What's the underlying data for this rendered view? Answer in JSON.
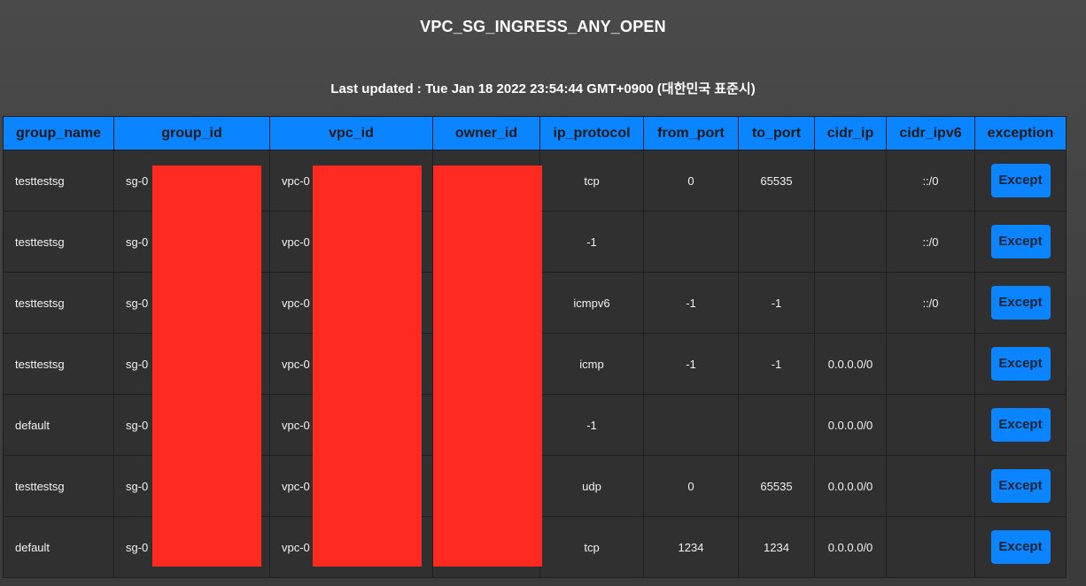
{
  "page": {
    "title": "VPC_SG_INGRESS_ANY_OPEN",
    "last_updated": "Last updated : Tue Jan 18 2022 23:54:44 GMT+0900 (대한민국 표준시)"
  },
  "colors": {
    "header_bg": "#0a84ff",
    "button_bg": "#0a84ff",
    "redaction": "#ff2a1f",
    "cell_bg": "#303030"
  },
  "table": {
    "headers": [
      "group_name",
      "group_id",
      "vpc_id",
      "owner_id",
      "ip_protocol",
      "from_port",
      "to_port",
      "cidr_ip",
      "cidr_ipv6",
      "exception"
    ],
    "rows": [
      {
        "group_name": "testtestsg",
        "group_id": "sg-0",
        "vpc_id": "vpc-0",
        "owner_id": "",
        "ip_protocol": "tcp",
        "from_port": "0",
        "to_port": "65535",
        "cidr_ip": "",
        "cidr_ipv6": "::/0",
        "exception": "Except"
      },
      {
        "group_name": "testtestsg",
        "group_id": "sg-0",
        "vpc_id": "vpc-0",
        "owner_id": "",
        "ip_protocol": "-1",
        "from_port": "",
        "to_port": "",
        "cidr_ip": "",
        "cidr_ipv6": "::/0",
        "exception": "Except"
      },
      {
        "group_name": "testtestsg",
        "group_id": "sg-0",
        "vpc_id": "vpc-0",
        "owner_id": "",
        "ip_protocol": "icmpv6",
        "from_port": "-1",
        "to_port": "-1",
        "cidr_ip": "",
        "cidr_ipv6": "::/0",
        "exception": "Except"
      },
      {
        "group_name": "testtestsg",
        "group_id": "sg-0",
        "vpc_id": "vpc-0",
        "owner_id": "",
        "ip_protocol": "icmp",
        "from_port": "-1",
        "to_port": "-1",
        "cidr_ip": "0.0.0.0/0",
        "cidr_ipv6": "",
        "exception": "Except"
      },
      {
        "group_name": "default",
        "group_id": "sg-0",
        "vpc_id": "vpc-0",
        "owner_id": "",
        "ip_protocol": "-1",
        "from_port": "",
        "to_port": "",
        "cidr_ip": "0.0.0.0/0",
        "cidr_ipv6": "",
        "exception": "Except"
      },
      {
        "group_name": "testtestsg",
        "group_id": "sg-0",
        "vpc_id": "vpc-0",
        "owner_id": "",
        "ip_protocol": "udp",
        "from_port": "0",
        "to_port": "65535",
        "cidr_ip": "0.0.0.0/0",
        "cidr_ipv6": "",
        "exception": "Except"
      },
      {
        "group_name": "default",
        "group_id": "sg-0",
        "vpc_id": "vpc-0",
        "owner_id": "",
        "ip_protocol": "tcp",
        "from_port": "1234",
        "to_port": "1234",
        "cidr_ip": "0.0.0.0/0",
        "cidr_ipv6": "",
        "exception": "Except"
      }
    ]
  }
}
